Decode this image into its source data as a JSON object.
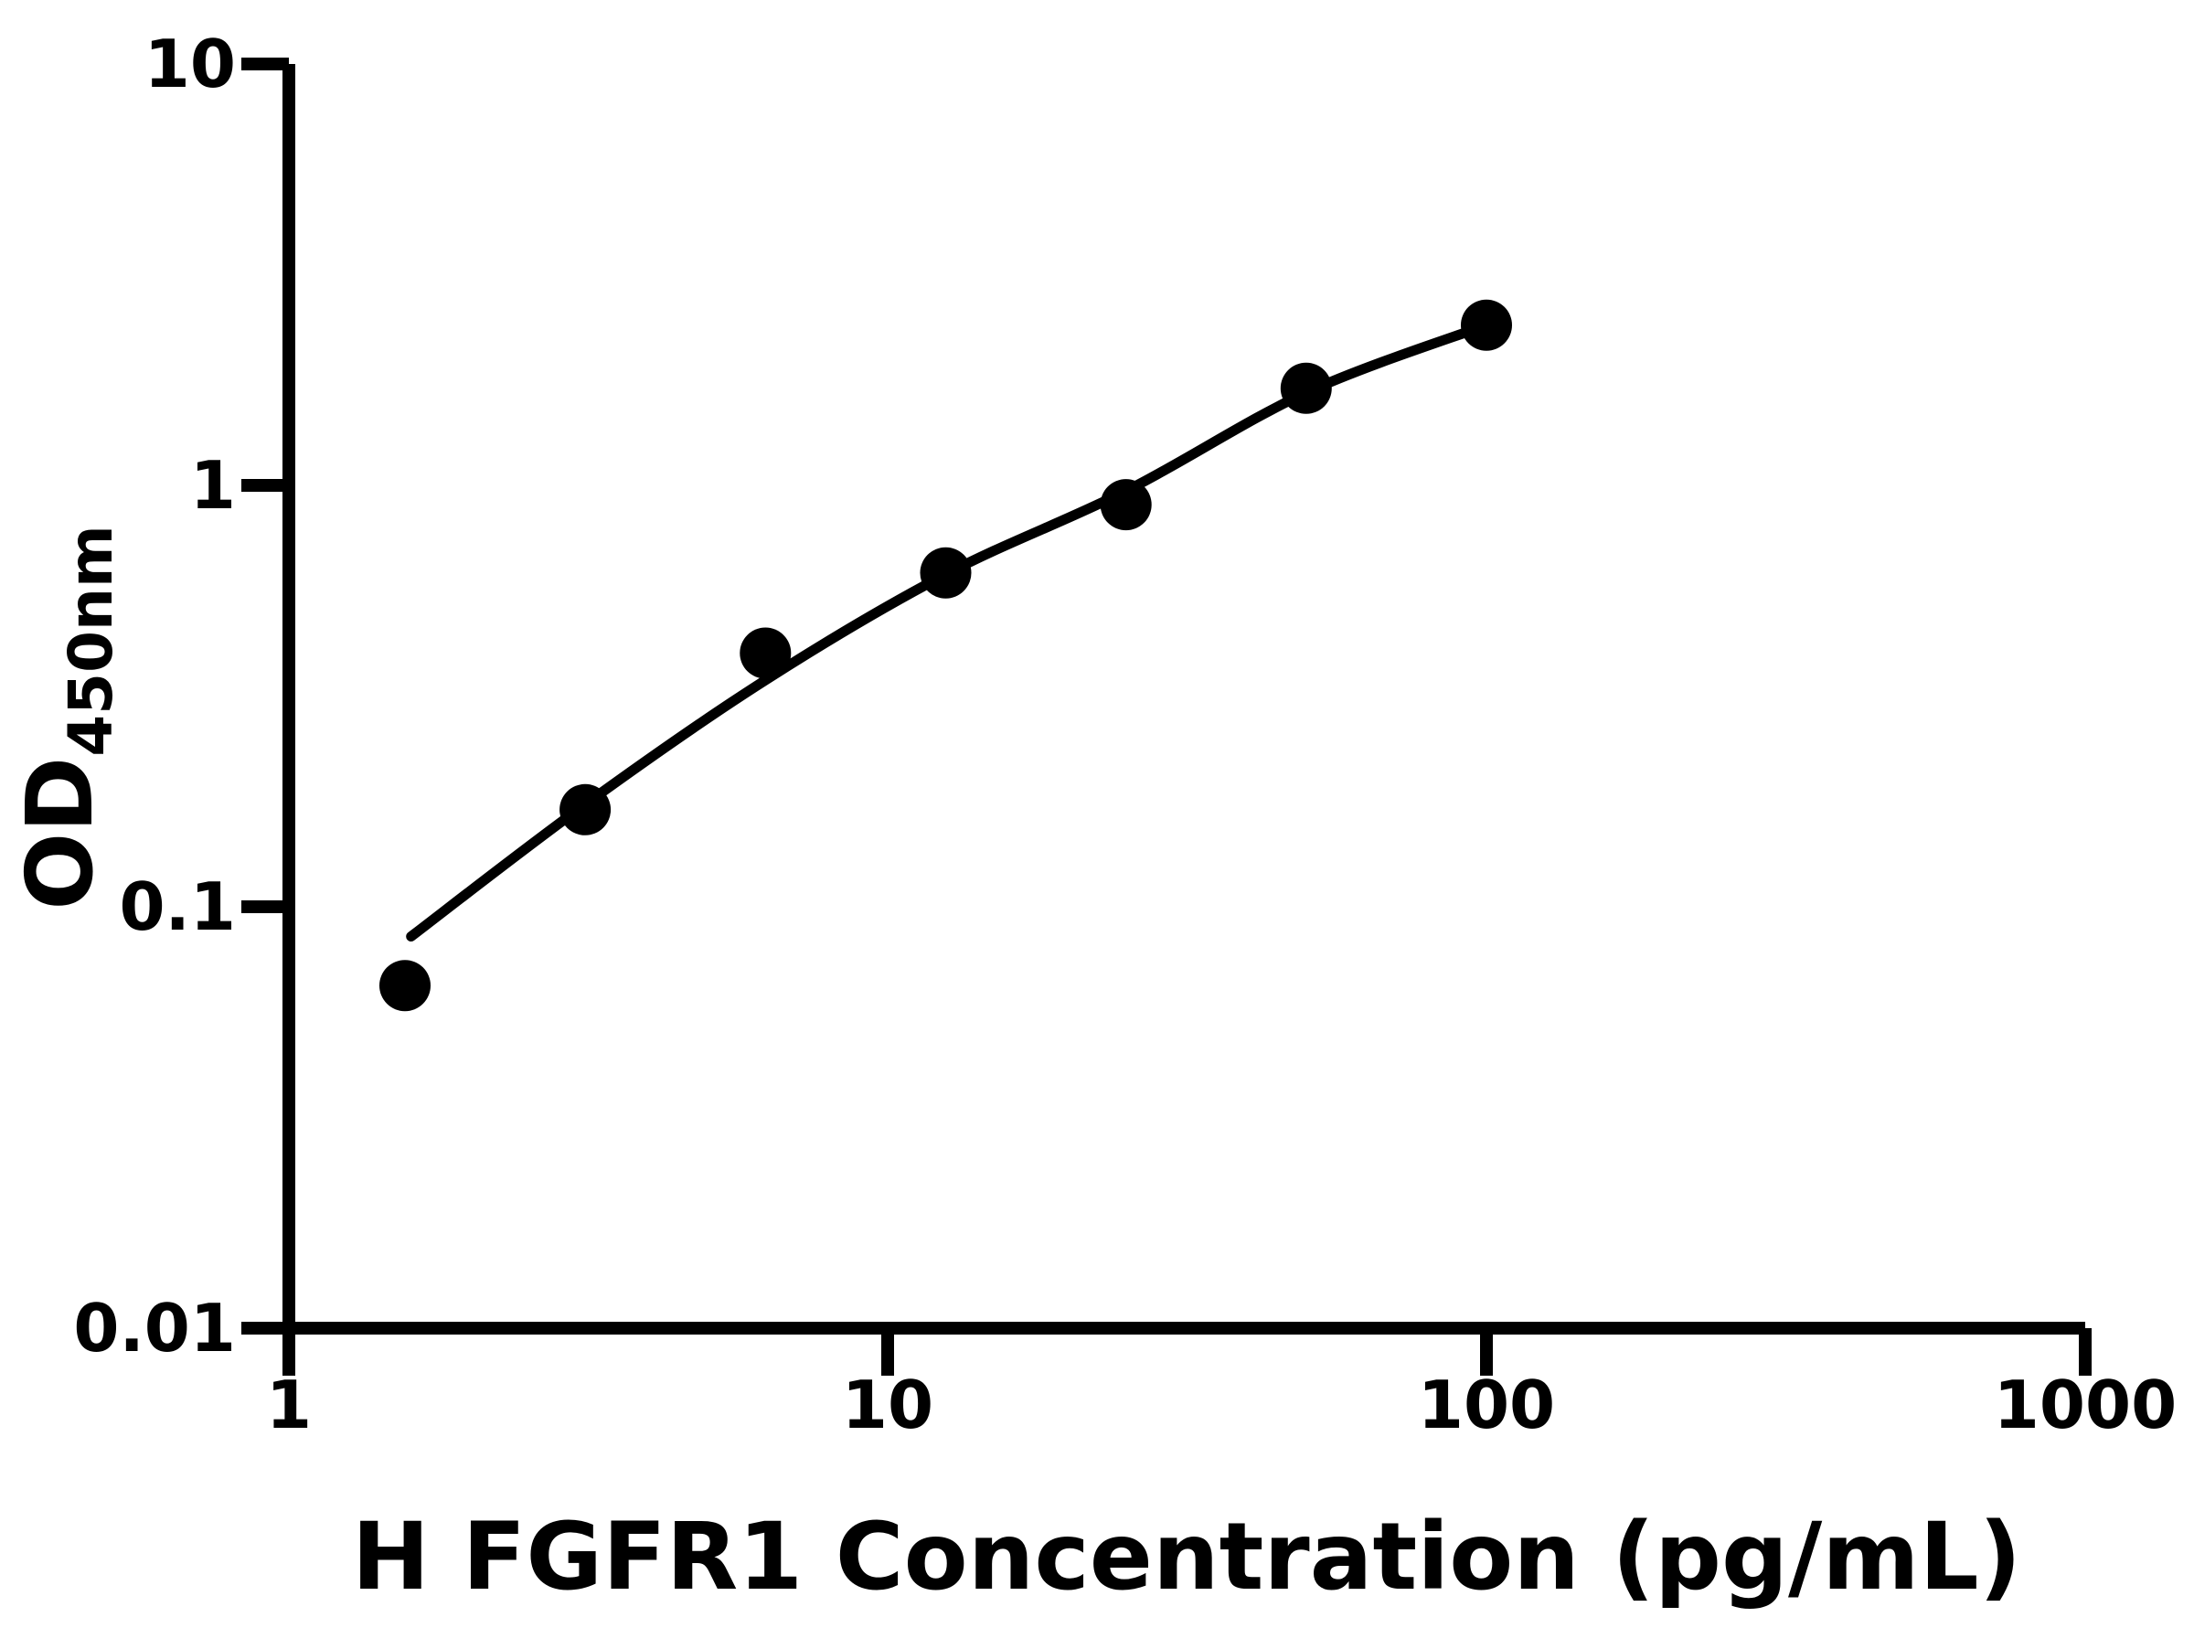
{
  "chart_data": {
    "type": "scatter",
    "title": "",
    "xlabel": "H FGFR1 Concentration (pg/mL)",
    "ylabel_main": "OD",
    "ylabel_sub": "450nm",
    "xscale": "log",
    "yscale": "log",
    "xlim": [
      1,
      1000
    ],
    "ylim": [
      0.01,
      10
    ],
    "grid": false,
    "legend": null,
    "points": {
      "x": [
        1.5625,
        3.125,
        6.25,
        12.5,
        25,
        50,
        100
      ],
      "od": [
        0.065,
        0.17,
        0.4,
        0.62,
        0.9,
        1.7,
        2.4
      ]
    },
    "fit_curve": {
      "x": [
        1.6,
        3.125,
        6.25,
        12.5,
        25,
        50,
        100
      ],
      "od": [
        0.085,
        0.175,
        0.345,
        0.615,
        0.97,
        1.66,
        2.4
      ]
    },
    "xticks": {
      "values": [
        1,
        10,
        100,
        1000
      ],
      "labels": [
        "1",
        "10",
        "100",
        "1000"
      ]
    },
    "yticks": {
      "values": [
        10,
        1,
        0.1,
        0.01
      ],
      "labels": [
        "10",
        "1",
        "0.1",
        "0.01"
      ]
    },
    "colors": {
      "points": "#000000",
      "curve": "#000000",
      "axes": "#000000",
      "background": "#ffffff"
    }
  }
}
